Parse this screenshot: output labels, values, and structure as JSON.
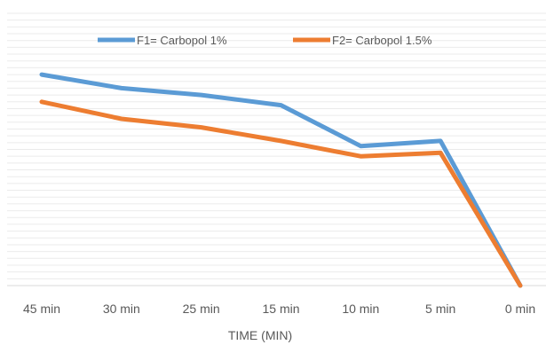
{
  "chart_data": {
    "type": "line",
    "categories": [
      "45 min",
      "30 min",
      "25 min",
      "15 min",
      "10 min",
      "5 min",
      "0 min"
    ],
    "series": [
      {
        "name": "F1= Carbopol 1%",
        "color": "#5B9BD5",
        "values": [
          62,
          58,
          56,
          53,
          41,
          42.5,
          0
        ]
      },
      {
        "name": "F2= Carbopol 1.5%",
        "color": "#ED7D31",
        "values": [
          54,
          49,
          46.5,
          42.5,
          38,
          39,
          0
        ]
      }
    ],
    "title": "",
    "xlabel": "TIME (MIN)",
    "ylabel": "",
    "ylim": [
      0,
      80
    ],
    "grid": true,
    "legend_position": "top"
  }
}
